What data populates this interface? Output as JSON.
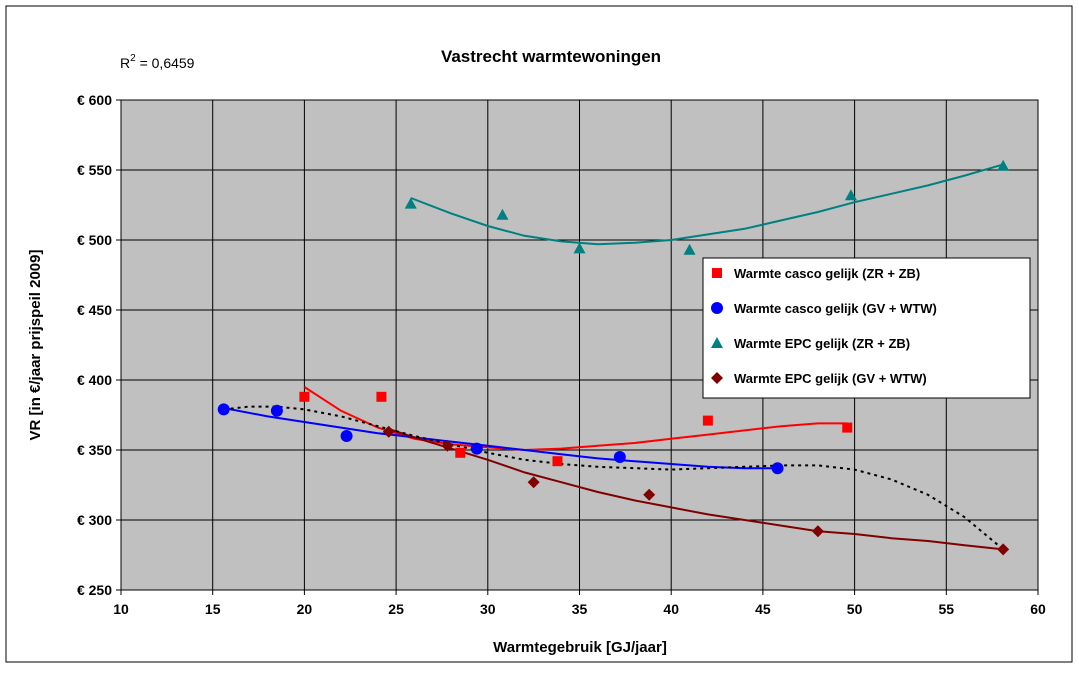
{
  "chart_data": {
    "type": "scatter",
    "title": "Vastrecht warmtewoningen",
    "annotation": {
      "prefix": "R",
      "sup": "2",
      "value": " = 0,6459"
    },
    "xlabel": "Warmtegebruik [GJ/jaar]",
    "ylabel": "VR [in €/jaar prijspeil 2009]",
    "xlim": [
      10,
      60
    ],
    "ylim": [
      250,
      600
    ],
    "x_ticks": [
      {
        "value": 10,
        "label": "10"
      },
      {
        "value": 15,
        "label": "15"
      },
      {
        "value": 20,
        "label": "20"
      },
      {
        "value": 25,
        "label": "25"
      },
      {
        "value": 30,
        "label": "30"
      },
      {
        "value": 35,
        "label": "35"
      },
      {
        "value": 40,
        "label": "40"
      },
      {
        "value": 45,
        "label": "45"
      },
      {
        "value": 50,
        "label": "50"
      },
      {
        "value": 55,
        "label": "55"
      },
      {
        "value": 60,
        "label": "60"
      }
    ],
    "y_ticks": [
      {
        "value": 250,
        "label": "€ 250"
      },
      {
        "value": 300,
        "label": "€ 300"
      },
      {
        "value": 350,
        "label": "€ 350"
      },
      {
        "value": 400,
        "label": "€ 400"
      },
      {
        "value": 450,
        "label": "€ 450"
      },
      {
        "value": 500,
        "label": "€ 500"
      },
      {
        "value": 550,
        "label": "€ 550"
      },
      {
        "value": 600,
        "label": "€ 600"
      }
    ],
    "grid": true,
    "plot_background": "#c0c0c0",
    "legend_position": "right",
    "series": [
      {
        "name": "Warmte casco gelijk (ZR + ZB)",
        "marker": "square",
        "color": "#ff0000",
        "points": [
          [
            20.0,
            388
          ],
          [
            24.2,
            388
          ],
          [
            28.5,
            348
          ],
          [
            33.8,
            342
          ],
          [
            42.0,
            371
          ],
          [
            49.6,
            366
          ]
        ],
        "trend": [
          [
            20,
            395
          ],
          [
            22,
            378
          ],
          [
            24,
            366
          ],
          [
            26,
            358
          ],
          [
            28,
            354
          ],
          [
            30,
            352
          ],
          [
            32,
            350
          ],
          [
            34,
            351
          ],
          [
            36,
            353
          ],
          [
            38,
            355
          ],
          [
            40,
            358
          ],
          [
            42,
            361
          ],
          [
            44,
            364
          ],
          [
            46,
            367
          ],
          [
            48,
            369
          ],
          [
            49.6,
            369
          ]
        ]
      },
      {
        "name": "Warmte casco gelijk (GV + WTW)",
        "marker": "circle",
        "color": "#0000ff",
        "points": [
          [
            15.6,
            379
          ],
          [
            18.5,
            378
          ],
          [
            22.3,
            360
          ],
          [
            29.4,
            351
          ],
          [
            37.2,
            345
          ],
          [
            45.8,
            337
          ]
        ],
        "trend": [
          [
            15.6,
            380
          ],
          [
            18,
            374
          ],
          [
            20,
            370
          ],
          [
            22,
            366
          ],
          [
            24,
            362
          ],
          [
            26,
            359
          ],
          [
            28,
            356
          ],
          [
            30,
            353
          ],
          [
            32,
            350
          ],
          [
            34,
            347
          ],
          [
            36,
            344
          ],
          [
            38,
            342
          ],
          [
            40,
            340
          ],
          [
            42,
            338
          ],
          [
            44,
            337
          ],
          [
            45.8,
            337
          ]
        ]
      },
      {
        "name": "Warmte EPC gelijk (ZR + ZB)",
        "marker": "triangle",
        "color": "#008080",
        "points": [
          [
            25.8,
            526
          ],
          [
            30.8,
            518
          ],
          [
            35.0,
            494
          ],
          [
            41.0,
            493
          ],
          [
            49.8,
            532
          ],
          [
            58.1,
            553
          ]
        ],
        "trend": [
          [
            25.8,
            530
          ],
          [
            27,
            524
          ],
          [
            28,
            519
          ],
          [
            30,
            510
          ],
          [
            32,
            503
          ],
          [
            34,
            499
          ],
          [
            36,
            497
          ],
          [
            38,
            498
          ],
          [
            40,
            500
          ],
          [
            42,
            504
          ],
          [
            44,
            508
          ],
          [
            46,
            514
          ],
          [
            48,
            520
          ],
          [
            50,
            527
          ],
          [
            52,
            533
          ],
          [
            54,
            539
          ],
          [
            56,
            546
          ],
          [
            58.1,
            554
          ]
        ]
      },
      {
        "name": "Warmte EPC gelijk (GV +  WTW)",
        "marker": "diamond",
        "color": "#800000",
        "points": [
          [
            24.6,
            363
          ],
          [
            27.8,
            353
          ],
          [
            32.5,
            327
          ],
          [
            38.8,
            318
          ],
          [
            48.0,
            292
          ],
          [
            58.1,
            279
          ]
        ],
        "trend": [
          [
            24.6,
            365
          ],
          [
            26,
            359
          ],
          [
            28,
            351
          ],
          [
            30,
            343
          ],
          [
            32,
            334
          ],
          [
            34,
            327
          ],
          [
            36,
            320
          ],
          [
            38,
            314
          ],
          [
            40,
            309
          ],
          [
            42,
            304
          ],
          [
            44,
            300
          ],
          [
            46,
            296
          ],
          [
            48,
            292
          ],
          [
            50,
            290
          ],
          [
            52,
            287
          ],
          [
            54,
            285
          ],
          [
            56,
            282
          ],
          [
            58.1,
            279
          ]
        ]
      },
      {
        "name": "",
        "type": "trend-dotted",
        "color": "#000000",
        "trend": [
          [
            15.6,
            379
          ],
          [
            17,
            381
          ],
          [
            18.5,
            381
          ],
          [
            20,
            379
          ],
          [
            22,
            374
          ],
          [
            24,
            367
          ],
          [
            26,
            360
          ],
          [
            28,
            354
          ],
          [
            30,
            348
          ],
          [
            32,
            343
          ],
          [
            34,
            340
          ],
          [
            36,
            338
          ],
          [
            38,
            337
          ],
          [
            40,
            336
          ],
          [
            42,
            337
          ],
          [
            44,
            338
          ],
          [
            46,
            339
          ],
          [
            48,
            339
          ],
          [
            50,
            336
          ],
          [
            52,
            329
          ],
          [
            54,
            318
          ],
          [
            56,
            302
          ],
          [
            58.1,
            279
          ]
        ]
      }
    ]
  }
}
